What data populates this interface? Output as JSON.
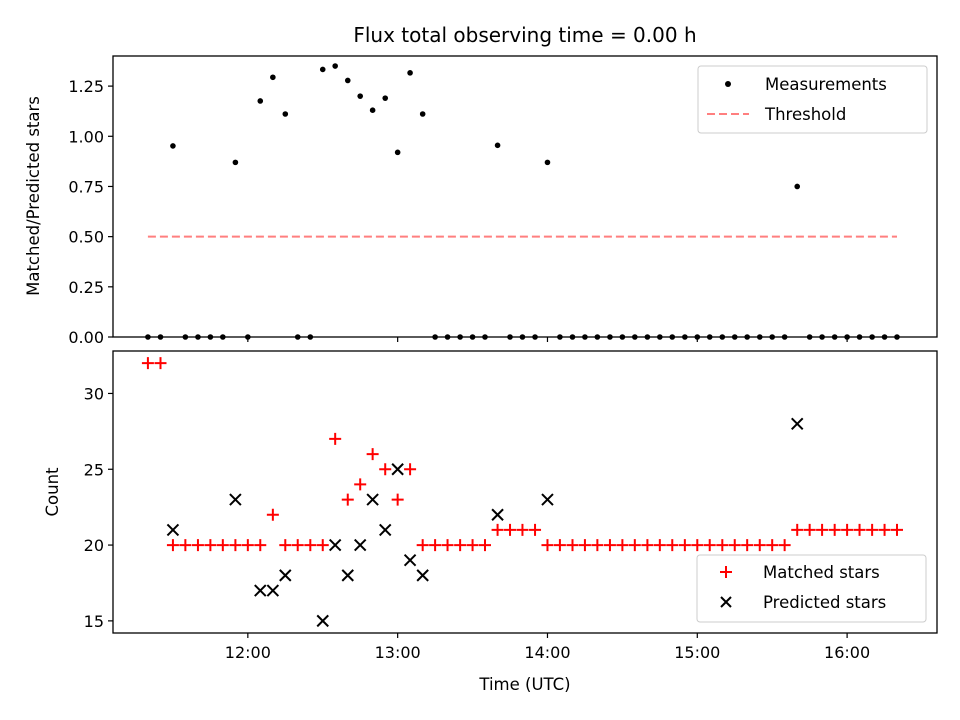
{
  "chart_data": [
    {
      "type": "scatter",
      "panel": "top",
      "title": "Flux total observing time = 0.00 h",
      "xlabel": "",
      "ylabel": "Matched/Predicted stars",
      "ylim": [
        0.0,
        1.4
      ],
      "yticks": [
        0.0,
        0.25,
        0.5,
        0.75,
        1.0,
        1.25
      ],
      "ytick_labels": [
        "0.00",
        "0.25",
        "0.50",
        "0.75",
        "1.00",
        "1.25"
      ],
      "xlim_hours": [
        11.1,
        16.6
      ],
      "xticks_hours": [
        12,
        13,
        14,
        15,
        16
      ],
      "legend_position": "top-right",
      "series": [
        {
          "name": "Measurements",
          "color": "#000000",
          "marker": "dot",
          "x_hours": [
            11.333,
            11.417,
            11.5,
            11.583,
            11.667,
            11.75,
            11.833,
            11.917,
            12.0,
            12.083,
            12.167,
            12.25,
            12.333,
            12.417,
            12.5,
            12.583,
            12.667,
            12.75,
            12.833,
            12.917,
            13.0,
            13.083,
            13.167,
            13.25,
            13.333,
            13.417,
            13.5,
            13.583,
            13.667,
            13.75,
            13.833,
            13.917,
            14.0,
            14.083,
            14.167,
            14.25,
            14.333,
            14.417,
            14.5,
            14.583,
            14.667,
            14.75,
            14.833,
            14.917,
            15.0,
            15.083,
            15.167,
            15.25,
            15.333,
            15.417,
            15.5,
            15.583,
            15.667,
            15.75,
            15.833,
            15.917,
            16.0,
            16.083,
            16.167,
            16.25,
            16.333
          ],
          "y": [
            0,
            0,
            0.952,
            0,
            0,
            0,
            0,
            0.87,
            0,
            1.176,
            1.294,
            1.111,
            0,
            0,
            1.333,
            1.35,
            1.278,
            1.2,
            1.13,
            1.19,
            0.92,
            1.316,
            1.111,
            0,
            0,
            0,
            0,
            0,
            0.955,
            0,
            0,
            0,
            0.87,
            0,
            0,
            0,
            0,
            0,
            0,
            0,
            0,
            0,
            0,
            0,
            0,
            0,
            0,
            0,
            0,
            0,
            0,
            0,
            0.75,
            0,
            0,
            0,
            0,
            0,
            0,
            0,
            0
          ]
        },
        {
          "name": "Threshold",
          "color": "#ff7f7f",
          "style": "dashed",
          "x_hours": [
            11.333,
            16.333
          ],
          "y": [
            0.5,
            0.5
          ]
        }
      ]
    },
    {
      "type": "scatter",
      "panel": "bottom",
      "title": "",
      "xlabel": "Time (UTC)",
      "ylabel": "Count",
      "ylim": [
        14.2,
        32.8
      ],
      "yticks": [
        15,
        20,
        25,
        30
      ],
      "ytick_labels": [
        "15",
        "20",
        "25",
        "30"
      ],
      "xlim_hours": [
        11.1,
        16.6
      ],
      "xticks_hours": [
        12,
        13,
        14,
        15,
        16
      ],
      "xtick_labels": [
        "12:00",
        "13:00",
        "14:00",
        "15:00",
        "16:00"
      ],
      "legend_position": "bottom-right",
      "series": [
        {
          "name": "Matched stars",
          "color": "#ff0000",
          "marker": "plus",
          "x_hours": [
            11.333,
            11.417,
            11.5,
            11.583,
            11.667,
            11.75,
            11.833,
            11.917,
            12.0,
            12.083,
            12.167,
            12.25,
            12.333,
            12.417,
            12.5,
            12.583,
            12.667,
            12.75,
            12.833,
            12.917,
            13.0,
            13.083,
            13.167,
            13.25,
            13.333,
            13.417,
            13.5,
            13.583,
            13.667,
            13.75,
            13.833,
            13.917,
            14.0,
            14.083,
            14.167,
            14.25,
            14.333,
            14.417,
            14.5,
            14.583,
            14.667,
            14.75,
            14.833,
            14.917,
            15.0,
            15.083,
            15.167,
            15.25,
            15.333,
            15.417,
            15.5,
            15.583,
            15.667,
            15.75,
            15.833,
            15.917,
            16.0,
            16.083,
            16.167,
            16.25,
            16.333
          ],
          "y": [
            32,
            32,
            20,
            20,
            20,
            20,
            20,
            20,
            20,
            20,
            22,
            20,
            20,
            20,
            20,
            27,
            23,
            24,
            26,
            25,
            23,
            25,
            20,
            20,
            20,
            20,
            20,
            20,
            21,
            21,
            21,
            21,
            20,
            20,
            20,
            20,
            20,
            20,
            20,
            20,
            20,
            20,
            20,
            20,
            20,
            20,
            20,
            20,
            20,
            20,
            20,
            20,
            21,
            21,
            21,
            21,
            21,
            21,
            21,
            21,
            21
          ]
        },
        {
          "name": "Predicted stars",
          "color": "#000000",
          "marker": "x",
          "x_hours": [
            11.5,
            11.917,
            12.083,
            12.167,
            12.25,
            12.5,
            12.583,
            12.667,
            12.75,
            12.833,
            12.917,
            13.0,
            13.083,
            13.167,
            13.667,
            14.0,
            15.667
          ],
          "y": [
            21,
            23,
            17,
            17,
            18,
            15,
            20,
            18,
            20,
            23,
            21,
            25,
            19,
            18,
            22,
            23,
            28
          ]
        }
      ]
    }
  ]
}
